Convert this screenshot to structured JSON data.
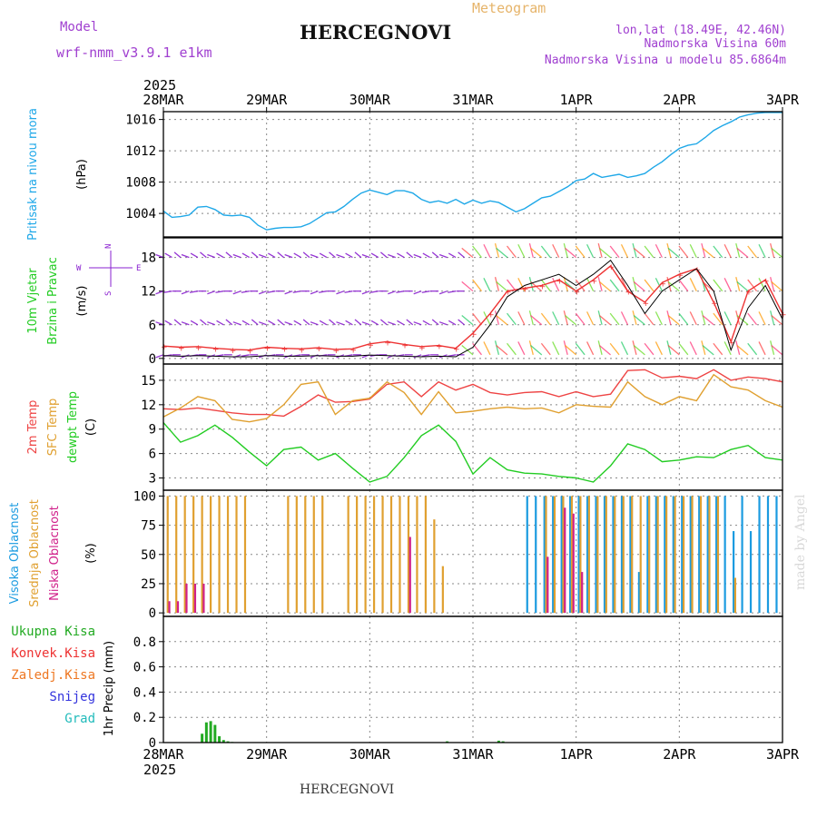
{
  "header": {
    "model_label": "Model",
    "model_name": "wrf-nmm_v3.9.1  e1km",
    "title": "HERCEGNOVI",
    "meteogram_label": "Meteogram",
    "coords": "lon,lat (18.49E, 42.46N)",
    "altitude": "Nadmorska Visina 60m",
    "model_altitude": "Nadmorska Visina u modelu 85.6864m"
  },
  "footer": {
    "station": "HERCEGNOVI",
    "credit": "made by Angel"
  },
  "colors": {
    "pressure": "#1fa8e8",
    "temp": "#ee4444",
    "sfc_temp": "#e0a030",
    "dewpt": "#22cc22",
    "high_cloud": "#1b9be0",
    "mid_cloud": "#e0a030",
    "low_cloud": "#d0208a",
    "wind_arrow": "#8a20d0",
    "wind_speed": "#ee3333",
    "precip": "#22aa22",
    "grid": "#888888"
  },
  "chart_data": [
    {
      "panel": "pressure",
      "type": "line",
      "ylabel_lines": [
        "Pritisak na nivou mora",
        "(hPa)"
      ],
      "ylim": [
        1001,
        1017
      ],
      "yticks": [
        1004,
        1008,
        1012,
        1016
      ],
      "x_start_label": "2025",
      "x_dates": [
        "28MAR",
        "29MAR",
        "30MAR",
        "31MAR",
        "1APR",
        "2APR",
        "3APR"
      ],
      "x": [
        0,
        2,
        4,
        6,
        8,
        10,
        12,
        14,
        16,
        18,
        20,
        22,
        24,
        26,
        28,
        30,
        32,
        34,
        36,
        38,
        40,
        42,
        44,
        46,
        48,
        50,
        52,
        54,
        56,
        58,
        60,
        62,
        64,
        66,
        68,
        70,
        72,
        74,
        76,
        78,
        80,
        82,
        84,
        86,
        88,
        90,
        92,
        94,
        96,
        98,
        100,
        102,
        104,
        106,
        108,
        110,
        112,
        114,
        116,
        118,
        120,
        122,
        124,
        126,
        128,
        130,
        132,
        134,
        136,
        138,
        140,
        142,
        144
      ],
      "series": [
        {
          "name": "pressure",
          "values": [
            1004.3,
            1003.5,
            1003.6,
            1003.8,
            1004.8,
            1004.9,
            1004.5,
            1003.8,
            1003.7,
            1003.8,
            1003.5,
            1002.5,
            1001.9,
            1002.1,
            1002.2,
            1002.2,
            1002.3,
            1002.7,
            1003.4,
            1004.1,
            1004.2,
            1004.9,
            1005.8,
            1006.6,
            1007.0,
            1006.7,
            1006.4,
            1006.9,
            1006.9,
            1006.6,
            1005.8,
            1005.4,
            1005.6,
            1005.3,
            1005.8,
            1005.2,
            1005.7,
            1005.3,
            1005.6,
            1005.4,
            1004.8,
            1004.2,
            1004.6,
            1005.3,
            1006.0,
            1006.2,
            1006.8,
            1007.4,
            1008.2,
            1008.4,
            1009.1,
            1008.6,
            1008.8,
            1009.0,
            1008.6,
            1008.8,
            1009.1,
            1009.9,
            1010.6,
            1011.5,
            1012.3,
            1012.7,
            1012.9,
            1013.7,
            1014.6,
            1015.2,
            1015.7,
            1016.3,
            1016.6,
            1016.8,
            1016.9,
            1016.9,
            1016.9
          ]
        }
      ]
    },
    {
      "panel": "wind",
      "type": "line",
      "ylabel_lines": [
        "10m Vjetar",
        "Brzina i Pravac",
        "(m/s)"
      ],
      "compass": {
        "n": "N",
        "s": "S",
        "e": "E",
        "w": "W"
      },
      "ylim": [
        -1,
        21.5
      ],
      "yticks": [
        0,
        6,
        12,
        18
      ],
      "x": [
        0,
        4,
        8,
        12,
        16,
        20,
        24,
        28,
        32,
        36,
        40,
        44,
        48,
        52,
        56,
        60,
        64,
        68,
        72,
        76,
        80,
        84,
        88,
        92,
        96,
        100,
        104,
        108,
        112,
        116,
        120,
        124,
        128,
        132,
        136,
        140,
        144
      ],
      "series": [
        {
          "name": "wind speed",
          "values": [
            2.2,
            2.0,
            2.1,
            1.8,
            1.6,
            1.5,
            2.0,
            1.8,
            1.7,
            1.9,
            1.6,
            1.7,
            2.6,
            3.0,
            2.5,
            2.1,
            2.3,
            1.8,
            4.5,
            8.0,
            12.0,
            12.5,
            13.0,
            14.0,
            12.0,
            14.0,
            16.5,
            12.0,
            10.0,
            13.5,
            15.0,
            16.0,
            10.0,
            3.0,
            12.0,
            14.0,
            8.0
          ]
        },
        {
          "name": "gust",
          "values": [
            0.5,
            0.4,
            0.5,
            0.4,
            0.3,
            0.3,
            0.5,
            0.4,
            0.4,
            0.5,
            0.4,
            0.4,
            0.6,
            0.5,
            0.4,
            0.3,
            0.4,
            0.3,
            2.0,
            6.0,
            11.0,
            13.0,
            14.0,
            15.0,
            13.0,
            15.0,
            17.5,
            13.0,
            8.0,
            12.0,
            14.0,
            16.0,
            12.0,
            1.5,
            9.0,
            13.0,
            7.0
          ]
        }
      ]
    },
    {
      "panel": "temperature",
      "type": "line",
      "ylabel_lines": [
        "2m Temp",
        "SFC Temp",
        "dewpt Temp",
        "(C)"
      ],
      "ylim": [
        1.5,
        17
      ],
      "yticks": [
        3,
        6,
        9,
        12,
        15
      ],
      "x": [
        0,
        4,
        8,
        12,
        16,
        20,
        24,
        28,
        32,
        36,
        40,
        44,
        48,
        52,
        56,
        60,
        64,
        68,
        72,
        76,
        80,
        84,
        88,
        92,
        96,
        100,
        104,
        108,
        112,
        116,
        120,
        124,
        128,
        132,
        136,
        140,
        144
      ],
      "series": [
        {
          "name": "2m Temp",
          "values": [
            11.5,
            11.4,
            11.6,
            11.3,
            11.0,
            10.8,
            10.8,
            10.6,
            11.8,
            13.2,
            12.3,
            12.4,
            12.7,
            14.5,
            14.8,
            13.0,
            14.8,
            13.8,
            14.5,
            13.5,
            13.2,
            13.5,
            13.6,
            13.0,
            13.6,
            13.0,
            13.3,
            16.2,
            16.3,
            15.3,
            15.5,
            15.2,
            16.3,
            15.0,
            15.4,
            15.2,
            14.8
          ]
        },
        {
          "name": "SFC Temp",
          "values": [
            10.5,
            11.6,
            13.0,
            12.5,
            10.2,
            9.9,
            10.3,
            12.0,
            14.5,
            14.8,
            10.8,
            12.5,
            12.8,
            14.8,
            13.5,
            10.8,
            13.6,
            11.0,
            11.2,
            11.5,
            11.7,
            11.5,
            11.6,
            11.0,
            12.0,
            11.8,
            11.7,
            14.8,
            13.0,
            12.0,
            13.0,
            12.5,
            15.7,
            14.2,
            13.8,
            12.5,
            11.7
          ]
        },
        {
          "name": "dewpt Temp",
          "values": [
            9.8,
            7.4,
            8.2,
            9.5,
            8.0,
            6.2,
            4.5,
            6.5,
            6.8,
            5.2,
            6.0,
            4.2,
            2.5,
            3.2,
            5.5,
            8.2,
            9.5,
            7.5,
            3.5,
            5.5,
            4.0,
            3.6,
            3.5,
            3.2,
            3.0,
            2.5,
            4.5,
            7.2,
            6.5,
            5.0,
            5.2,
            5.6,
            5.5,
            6.5,
            7.0,
            5.5,
            5.2
          ]
        }
      ]
    },
    {
      "panel": "cloud",
      "type": "bar",
      "ylabel_lines": [
        "Visoka Oblacnost",
        "Srednja Oblacnost",
        "Niska Oblacnost",
        "(%)"
      ],
      "ylim": [
        -3,
        105
      ],
      "yticks": [
        0,
        25,
        50,
        75,
        100
      ],
      "x": [
        1,
        3,
        5,
        7,
        9,
        11,
        13,
        15,
        17,
        19,
        21,
        23,
        25,
        27,
        29,
        31,
        33,
        35,
        37,
        39,
        41,
        43,
        45,
        47,
        49,
        51,
        53,
        55,
        57,
        59,
        61,
        63,
        65,
        67,
        69,
        71,
        73,
        75,
        77,
        79,
        81,
        83,
        85,
        87,
        89,
        91,
        93,
        95,
        97,
        99,
        101,
        103,
        105,
        107,
        109,
        111,
        113,
        115,
        117,
        119,
        121,
        123,
        125,
        127,
        129,
        131,
        133,
        135,
        137,
        139,
        141,
        143
      ],
      "series": [
        {
          "name": "Visoka Oblacnost",
          "values": [
            0,
            0,
            0,
            0,
            0,
            0,
            0,
            0,
            0,
            0,
            0,
            0,
            0,
            0,
            0,
            0,
            0,
            0,
            0,
            0,
            0,
            0,
            0,
            0,
            0,
            0,
            0,
            0,
            0,
            0,
            0,
            0,
            0,
            0,
            0,
            0,
            0,
            0,
            0,
            0,
            0,
            0,
            100,
            100,
            100,
            100,
            100,
            100,
            100,
            100,
            100,
            100,
            100,
            100,
            100,
            35,
            100,
            100,
            100,
            100,
            100,
            100,
            100,
            100,
            100,
            100,
            70,
            100,
            70,
            100,
            100,
            100
          ]
        },
        {
          "name": "Srednja Oblacnost",
          "values": [
            100,
            100,
            100,
            100,
            100,
            100,
            100,
            100,
            100,
            100,
            0,
            0,
            0,
            0,
            100,
            100,
            100,
            100,
            100,
            0,
            0,
            100,
            100,
            100,
            100,
            100,
            100,
            100,
            100,
            100,
            100,
            80,
            40,
            0,
            0,
            0,
            0,
            0,
            0,
            0,
            0,
            0,
            0,
            0,
            100,
            100,
            100,
            100,
            100,
            100,
            100,
            100,
            100,
            100,
            100,
            100,
            100,
            100,
            100,
            100,
            100,
            100,
            100,
            100,
            100,
            0,
            30,
            0,
            0,
            0,
            0,
            0
          ]
        },
        {
          "name": "Niska Oblacnost",
          "values": [
            10,
            10,
            25,
            25,
            25,
            0,
            0,
            0,
            0,
            0,
            0,
            0,
            0,
            0,
            0,
            0,
            0,
            0,
            0,
            0,
            0,
            0,
            0,
            0,
            0,
            0,
            0,
            0,
            65,
            0,
            0,
            0,
            0,
            0,
            0,
            0,
            0,
            0,
            0,
            0,
            0,
            0,
            0,
            0,
            48,
            0,
            90,
            85,
            35,
            0,
            0,
            0,
            0,
            0,
            0,
            0,
            0,
            0,
            0,
            0,
            0,
            0,
            0,
            0,
            0,
            0,
            0,
            0,
            0,
            0,
            0,
            0
          ]
        }
      ]
    },
    {
      "panel": "precip",
      "type": "bar",
      "ylabel_lines": [
        "1hr Precip (mm)"
      ],
      "legend": [
        "Ukupna Kisa",
        "Konvek.Kisa",
        "Zaledj.Kisa",
        "Snijeg",
        "Grad"
      ],
      "ylim": [
        0,
        1.0
      ],
      "yticks": [
        0,
        0.2,
        0.4,
        0.6,
        0.8
      ],
      "x_end_label": "2025",
      "x": [
        9,
        10,
        11,
        12,
        13,
        14,
        15,
        16,
        66,
        78,
        79
      ],
      "series": [
        {
          "name": "Ukupna Kisa",
          "values": [
            0.07,
            0.16,
            0.17,
            0.14,
            0.05,
            0.02,
            0.01,
            0.005,
            0.01,
            0.015,
            0.01
          ]
        }
      ]
    }
  ]
}
